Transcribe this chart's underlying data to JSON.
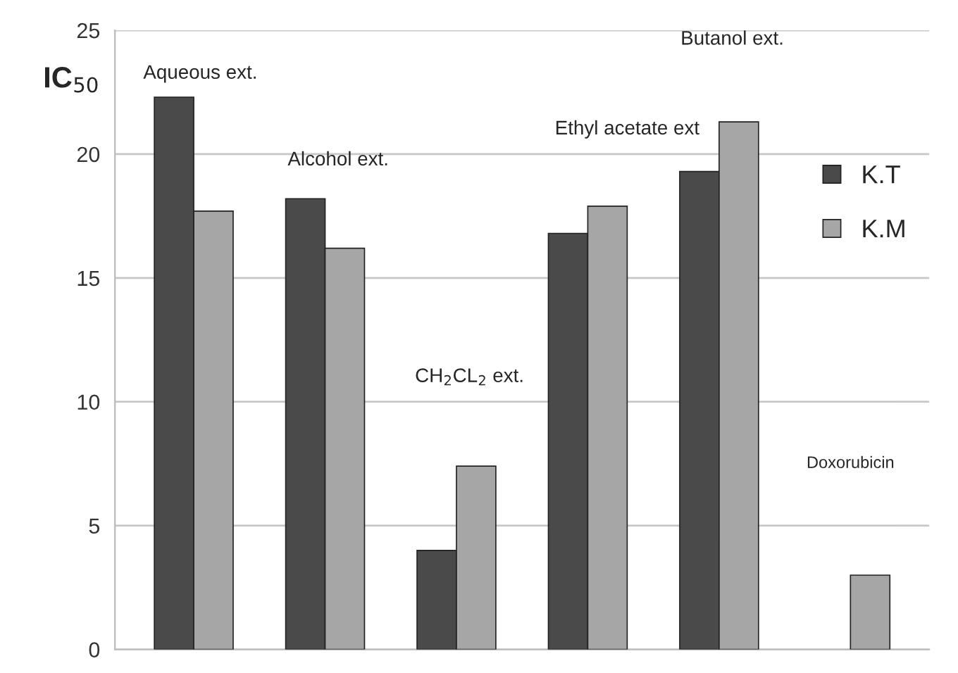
{
  "chart_data": {
    "type": "bar",
    "ylabel": "IC$_{50}$",
    "categories": [
      null,
      null,
      null,
      null,
      null,
      null
    ],
    "series": [
      {
        "name": "K.T",
        "color": "#4a4a4a",
        "values": [
          22.3,
          18.2,
          4.0,
          16.8,
          19.3,
          null
        ]
      },
      {
        "name": "K.M",
        "color": "#a6a6a6",
        "values": [
          17.7,
          16.2,
          7.4,
          17.9,
          21.3,
          3.0
        ]
      }
    ],
    "annotations": [
      "Aqueous ext.",
      "Alcohol ext.",
      "CH$_{2}$CL$_{2}$ ext.",
      "Ethyl acetate ext",
      "Butanol ext.",
      "Doxorubicin"
    ],
    "ylim": [
      0,
      25
    ],
    "yticks": [
      0,
      5,
      10,
      15,
      20,
      25
    ],
    "grid": "y",
    "legend": "right"
  }
}
